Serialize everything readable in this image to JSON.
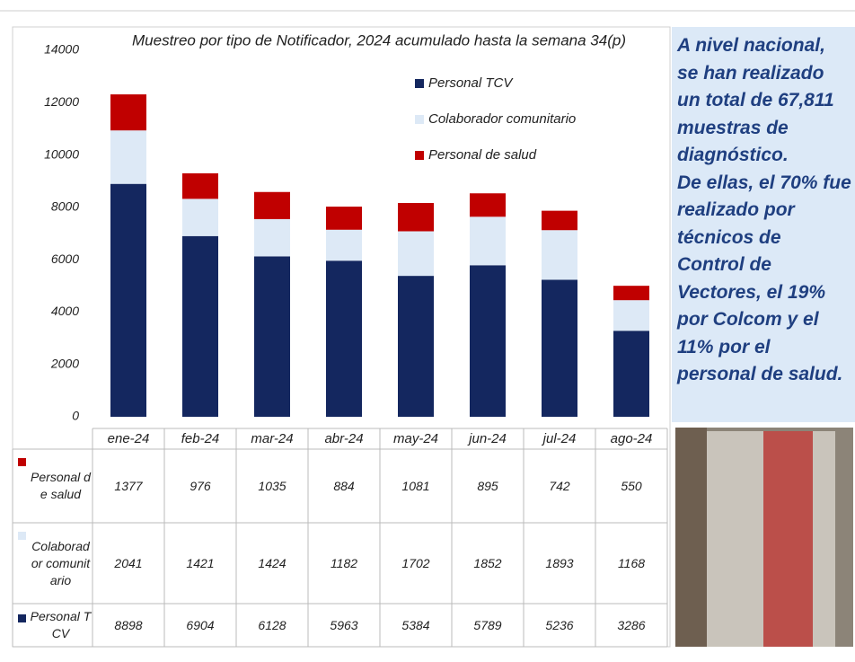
{
  "chart_data": {
    "type": "bar",
    "stacked": true,
    "title": "Muestreo por tipo de Notificador, 2024 acumulado hasta la semana 34(p)",
    "categories": [
      "ene-24",
      "feb-24",
      "mar-24",
      "abr-24",
      "may-24",
      "jun-24",
      "jul-24",
      "ago-24"
    ],
    "series": [
      {
        "name": "Personal TCV",
        "color": "#14275f",
        "values": [
          8898,
          6904,
          6128,
          5963,
          5384,
          5789,
          5236,
          3286
        ]
      },
      {
        "name": "Colaborador comunitario",
        "color": "#dde9f6",
        "values": [
          2041,
          1421,
          1424,
          1182,
          1702,
          1852,
          1893,
          1168
        ]
      },
      {
        "name": "Personal de salud",
        "color": "#c00000",
        "values": [
          1377,
          976,
          1035,
          884,
          1081,
          895,
          742,
          550
        ]
      }
    ],
    "ylim": [
      0,
      14000
    ],
    "yticks": [
      0,
      2000,
      4000,
      6000,
      8000,
      10000,
      12000,
      14000
    ],
    "grid": false,
    "legend": "top-right",
    "annotations": [
      "A nivel nacional, se han realizado un total de 67,811 muestras de diagnóstico.",
      "De ellas, el 70% fue realizado por técnicos de Control de Vectores, el 19% por Colcom y el 11% por el personal de salud."
    ]
  }
}
